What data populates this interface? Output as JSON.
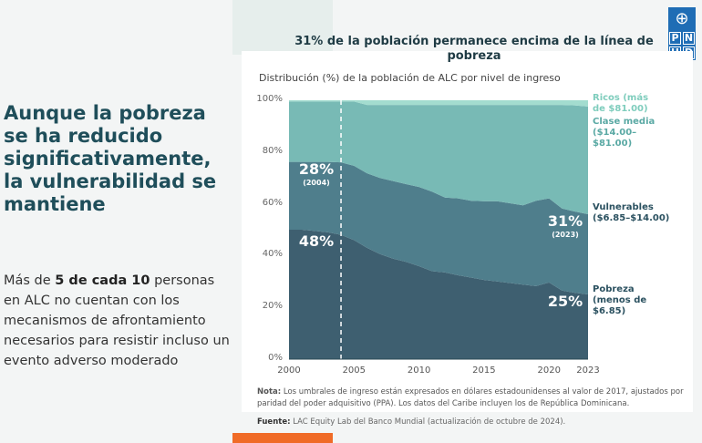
{
  "left": {
    "title": "Aunque la pobreza se ha reducido significativamente, la vulnerabilidad se mantiene",
    "body_pre": "Más de ",
    "body_bold": "5 de cada 10",
    "body_post": " personas en ALC no cuentan con los mecanismos de afrontamiento necesarios para resistir incluso un evento adverso moderado"
  },
  "logo": {
    "letters": [
      "P",
      "N",
      "U",
      "D"
    ]
  },
  "chart_data": {
    "type": "area",
    "stacked": true,
    "title": "31% de la población permanece encima de la línea de pobreza",
    "subtitle": "Distribución (%) de la población de ALC por nivel de ingreso",
    "x": [
      2000,
      2001,
      2002,
      2003,
      2004,
      2005,
      2006,
      2007,
      2008,
      2009,
      2010,
      2011,
      2012,
      2013,
      2014,
      2015,
      2016,
      2017,
      2018,
      2019,
      2020,
      2021,
      2022,
      2023
    ],
    "xticks": [
      "2000",
      "2005",
      "2010",
      "2015",
      "2020",
      "2023"
    ],
    "yticks": [
      "0%",
      "20%",
      "40%",
      "60%",
      "80%",
      "100%"
    ],
    "ylim": [
      0,
      100
    ],
    "series": [
      {
        "name": "Pobreza (menos de $6.85)",
        "color": "#3e5f70",
        "values": [
          50,
          50,
          49.5,
          49,
          48,
          46,
          43,
          40.6,
          38.8,
          37.6,
          35.9,
          34,
          33.5,
          32.4,
          31.5,
          30.6,
          30,
          29.4,
          28.8,
          28.2,
          29.6,
          26.5,
          25.6,
          25
        ]
      },
      {
        "name": "Vulnerables ($6.85–$14.00)",
        "color": "#4f7e8c",
        "values": [
          26.2,
          26.2,
          26.7,
          27.2,
          28,
          28.7,
          28.8,
          29.4,
          30,
          30,
          30.6,
          30.7,
          28.9,
          29.7,
          29.7,
          30.4,
          31,
          30.8,
          30.6,
          33,
          32.5,
          31.7,
          31.4,
          31
        ]
      },
      {
        "name": "Clase media ($14.00–$81.00)",
        "color": "#78bab5",
        "values": [
          23.3,
          23.3,
          23.3,
          23.3,
          23.5,
          24.8,
          26.4,
          28.2,
          29.4,
          30.6,
          31.7,
          33.5,
          35.8,
          36.1,
          37,
          37.2,
          37.2,
          38,
          38.8,
          37,
          36.1,
          40,
          41,
          41.6
        ]
      },
      {
        "name": "Ricos (más de $81.00)",
        "color": "#a3dccf",
        "values": [
          0.5,
          0.5,
          0.5,
          0.5,
          0.5,
          0.5,
          1.8,
          1.8,
          1.8,
          1.8,
          1.8,
          1.8,
          1.8,
          1.8,
          1.8,
          1.8,
          1.8,
          1.8,
          1.8,
          1.8,
          1.8,
          1.8,
          2,
          2.4
        ]
      }
    ],
    "legend_labels": [
      {
        "text": "Ricos (más de $81.00)",
        "color": "#7fcdbd"
      },
      {
        "text": "Clase media ($14.00–$81.00)",
        "color": "#5aa9a4"
      },
      {
        "text": "Vulnerables ($6.85–$14.00)",
        "color": "#2b5160"
      },
      {
        "text": "Pobreza (menos de $6.85)",
        "color": "#2b5160"
      }
    ],
    "reference_line_year": 2004,
    "annotations": [
      {
        "value": "28%",
        "sub": "(2004)"
      },
      {
        "value": "48%",
        "sub": ""
      },
      {
        "value": "31%",
        "sub": "(2023)"
      },
      {
        "value": "25%",
        "sub": ""
      }
    ],
    "note_label": "Nota:",
    "note": "Los umbrales de ingreso están expresados en dólares estadounidenses al valor de 2017, ajustados por paridad del poder adquisitivo (PPA). Los datos del Caribe incluyen los de República Dominicana.",
    "source_label": "Fuente:",
    "source": "LAC Equity Lab del Banco Mundial (actualización de octubre de 2024)."
  }
}
